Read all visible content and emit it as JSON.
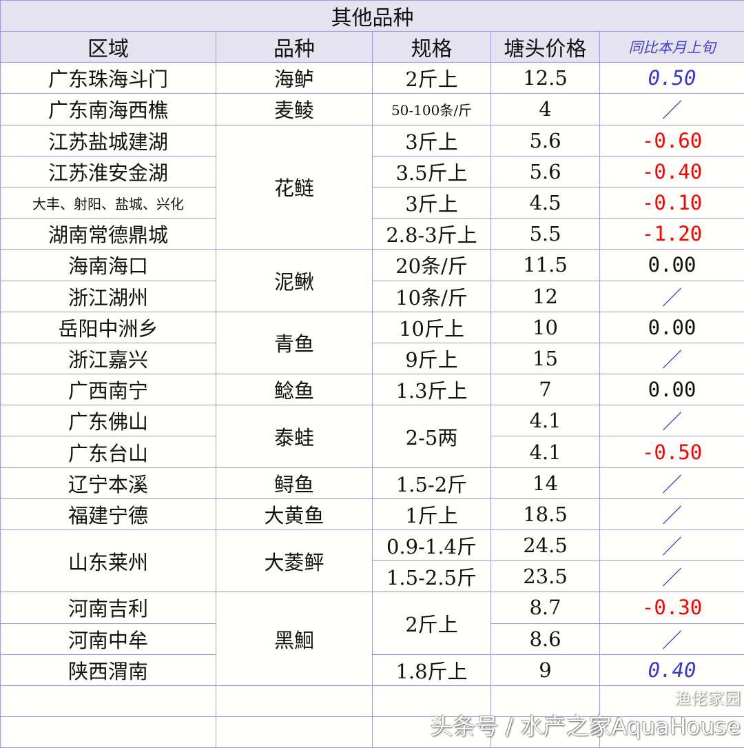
{
  "title": "其他品种",
  "headers": [
    "区域",
    "品种",
    "规格",
    "塘头价格",
    "同比本月上旬"
  ],
  "colors": {
    "blue": "#3838d0",
    "red": "#ff0000",
    "black": "#111111",
    "header_bg": "#e6e3f1",
    "border": "#9a9ae8"
  },
  "rows": [
    {
      "region": "广东珠海斗门",
      "species": "海鲈",
      "spec": "2斤上",
      "price": "12.5",
      "change": "0.50",
      "tone": "blue"
    },
    {
      "region": "广东南海西樵",
      "species": "麦鲮",
      "spec": "50-100条/斤",
      "price": "4",
      "change": "／",
      "tone": "blue"
    },
    {
      "region": "江苏盐城建湖",
      "species": "花鲢",
      "spec": "3斤上",
      "price": "5.6",
      "change": "-0.60",
      "tone": "red"
    },
    {
      "region": "江苏淮安金湖",
      "species": null,
      "spec": "3.5斤上",
      "price": "5.6",
      "change": "-0.40",
      "tone": "red"
    },
    {
      "region": "大丰、射阳、盐城、兴化",
      "species": null,
      "spec": "3斤上",
      "price": "4.5",
      "change": "-0.10",
      "tone": "red"
    },
    {
      "region": "湖南常德鼎城",
      "species": null,
      "spec": "2.8-3斤上",
      "price": "5.5",
      "change": "-1.20",
      "tone": "red"
    },
    {
      "region": "海南海口",
      "species": "泥鳅",
      "spec": "20条/斤",
      "price": "11.5",
      "change": "0.00",
      "tone": "black"
    },
    {
      "region": "浙江湖州",
      "species": null,
      "spec": "10条/斤",
      "price": "12",
      "change": "／",
      "tone": "blue"
    },
    {
      "region": "岳阳中洲乡",
      "species": "青鱼",
      "spec": "10斤上",
      "price": "10",
      "change": "0.00",
      "tone": "black"
    },
    {
      "region": "浙江嘉兴",
      "species": null,
      "spec": "9斤上",
      "price": "15",
      "change": "／",
      "tone": "blue"
    },
    {
      "region": "广西南宁",
      "species": "鲶鱼",
      "spec": "1.3斤上",
      "price": "7",
      "change": "0.00",
      "tone": "black"
    },
    {
      "region": "广东佛山",
      "species": "泰蛙",
      "spec": "2-5两",
      "price": "4.1",
      "change": "／",
      "tone": "blue"
    },
    {
      "region": "广东台山",
      "species": null,
      "spec": null,
      "price": "4.1",
      "change": "-0.50",
      "tone": "red"
    },
    {
      "region": "辽宁本溪",
      "species": "鲟鱼",
      "spec": "1.5-2斤",
      "price": "14",
      "change": "／",
      "tone": "blue"
    },
    {
      "region": "福建宁德",
      "species": "大黄鱼",
      "spec": "1斤上",
      "price": "18.5",
      "change": "／",
      "tone": "blue"
    },
    {
      "region": "山东莱州",
      "species": "大菱鲆",
      "spec": "0.9-1.4斤",
      "price": "24.5",
      "change": "／",
      "tone": "blue"
    },
    {
      "region": null,
      "species": null,
      "spec": "1.5-2.5斤",
      "price": "23.5",
      "change": "／",
      "tone": "blue"
    },
    {
      "region": "河南吉利",
      "species": "黑鮰",
      "spec": "2斤上",
      "price": "8.7",
      "change": "-0.30",
      "tone": "red"
    },
    {
      "region": "河南中牟",
      "species": null,
      "spec": null,
      "price": "8.6",
      "change": "／",
      "tone": "blue"
    },
    {
      "region": "陕西渭南",
      "species": null,
      "spec": "1.8斤上",
      "price": "9",
      "change": "0.40",
      "tone": "blue"
    },
    {
      "region": "",
      "species": "",
      "spec": "",
      "price": "",
      "change": "",
      "tone": "black"
    },
    {
      "region": "",
      "species": "",
      "spec": "",
      "price": "",
      "change": "",
      "tone": "black"
    }
  ],
  "watermark": {
    "text": "头条号 / 水产之家AquaHouse",
    "logo_text": "渔佬家园"
  }
}
